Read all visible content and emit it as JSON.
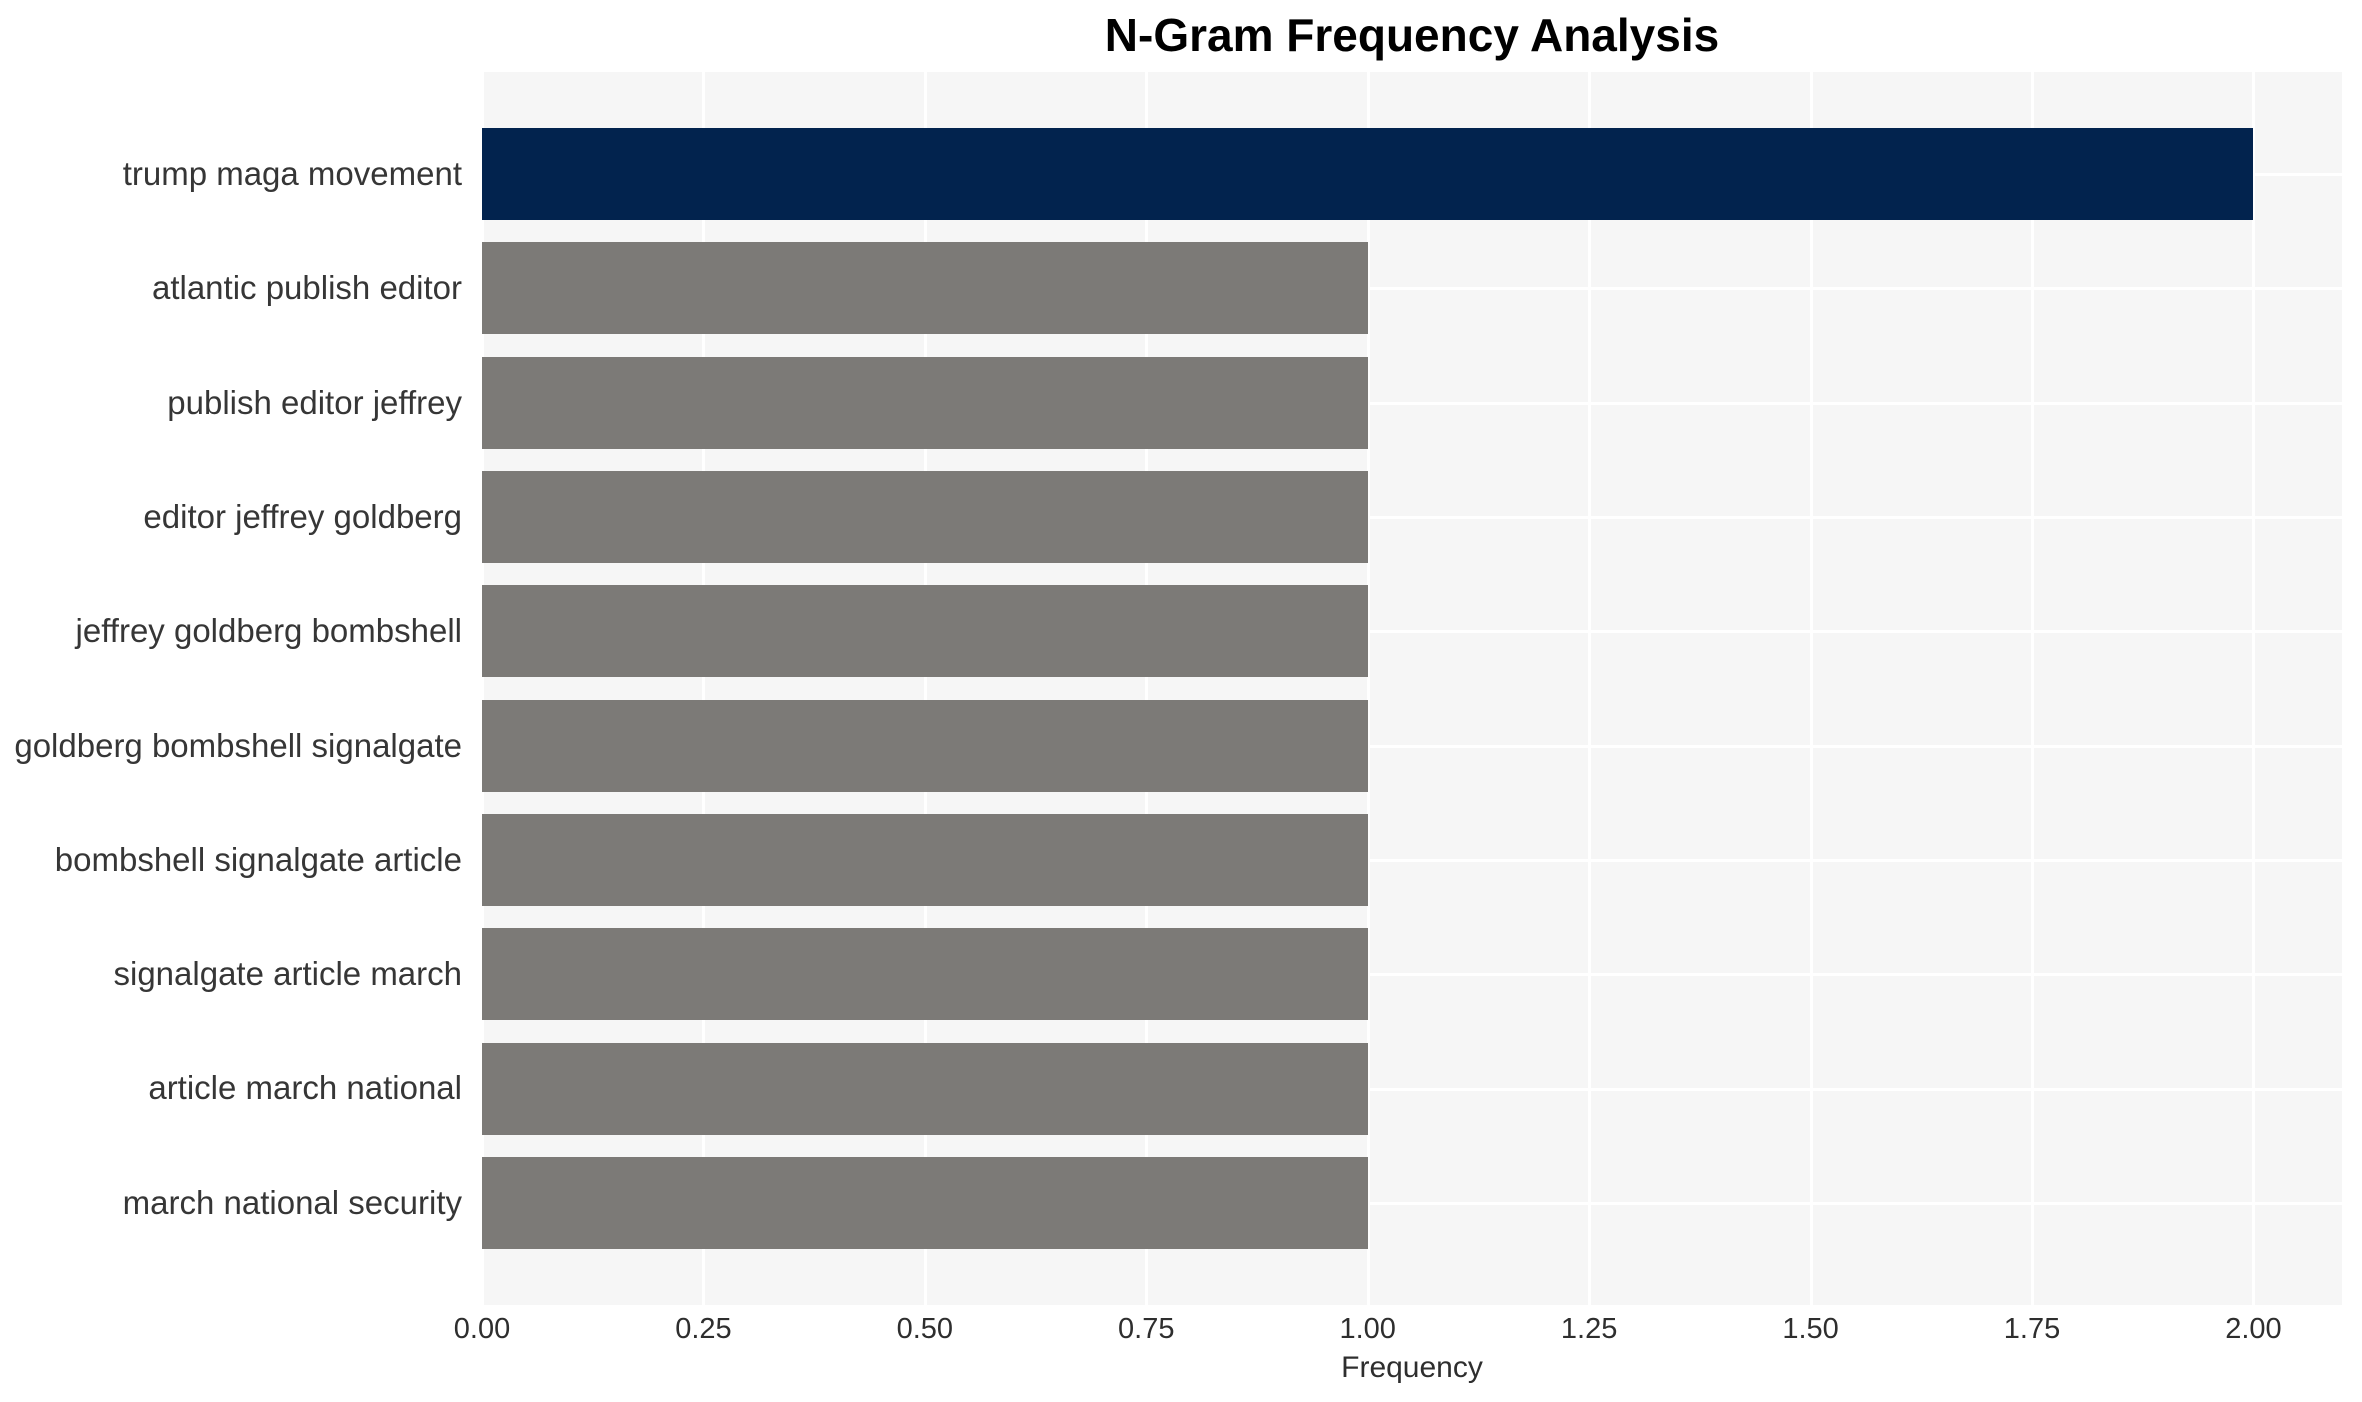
{
  "chart": {
    "title": "N-Gram Frequency Analysis",
    "xlabel": "Frequency",
    "colors": {
      "highlight_bar": "#02234e",
      "default_bar": "#7c7a77",
      "plot_background": "#f6f6f6",
      "gridline": "#ffffff",
      "title_text": "#000000",
      "tick_text": "#2e2e2e",
      "category_text": "#363636"
    }
  },
  "chart_data": {
    "type": "bar",
    "orientation": "horizontal",
    "title": "N-Gram Frequency Analysis",
    "xlabel": "Frequency",
    "ylabel": "",
    "categories": [
      "trump maga movement",
      "atlantic publish editor",
      "publish editor jeffrey",
      "editor jeffrey goldberg",
      "jeffrey goldberg bombshell",
      "goldberg bombshell signalgate",
      "bombshell signalgate article",
      "signalgate article march",
      "article march national",
      "march national security"
    ],
    "values": [
      2,
      1,
      1,
      1,
      1,
      1,
      1,
      1,
      1,
      1
    ],
    "bar_color_indices": [
      "highlight",
      "default",
      "default",
      "default",
      "default",
      "default",
      "default",
      "default",
      "default",
      "default"
    ],
    "xlim": [
      0,
      2.1
    ],
    "x_ticks": [
      {
        "value": 0.0,
        "label": "0.00"
      },
      {
        "value": 0.25,
        "label": "0.25"
      },
      {
        "value": 0.5,
        "label": "0.50"
      },
      {
        "value": 0.75,
        "label": "0.75"
      },
      {
        "value": 1.0,
        "label": "1.00"
      },
      {
        "value": 1.25,
        "label": "1.25"
      },
      {
        "value": 1.5,
        "label": "1.50"
      },
      {
        "value": 1.75,
        "label": "1.75"
      },
      {
        "value": 2.0,
        "label": "2.00"
      }
    ],
    "grid": true,
    "legend": false
  }
}
